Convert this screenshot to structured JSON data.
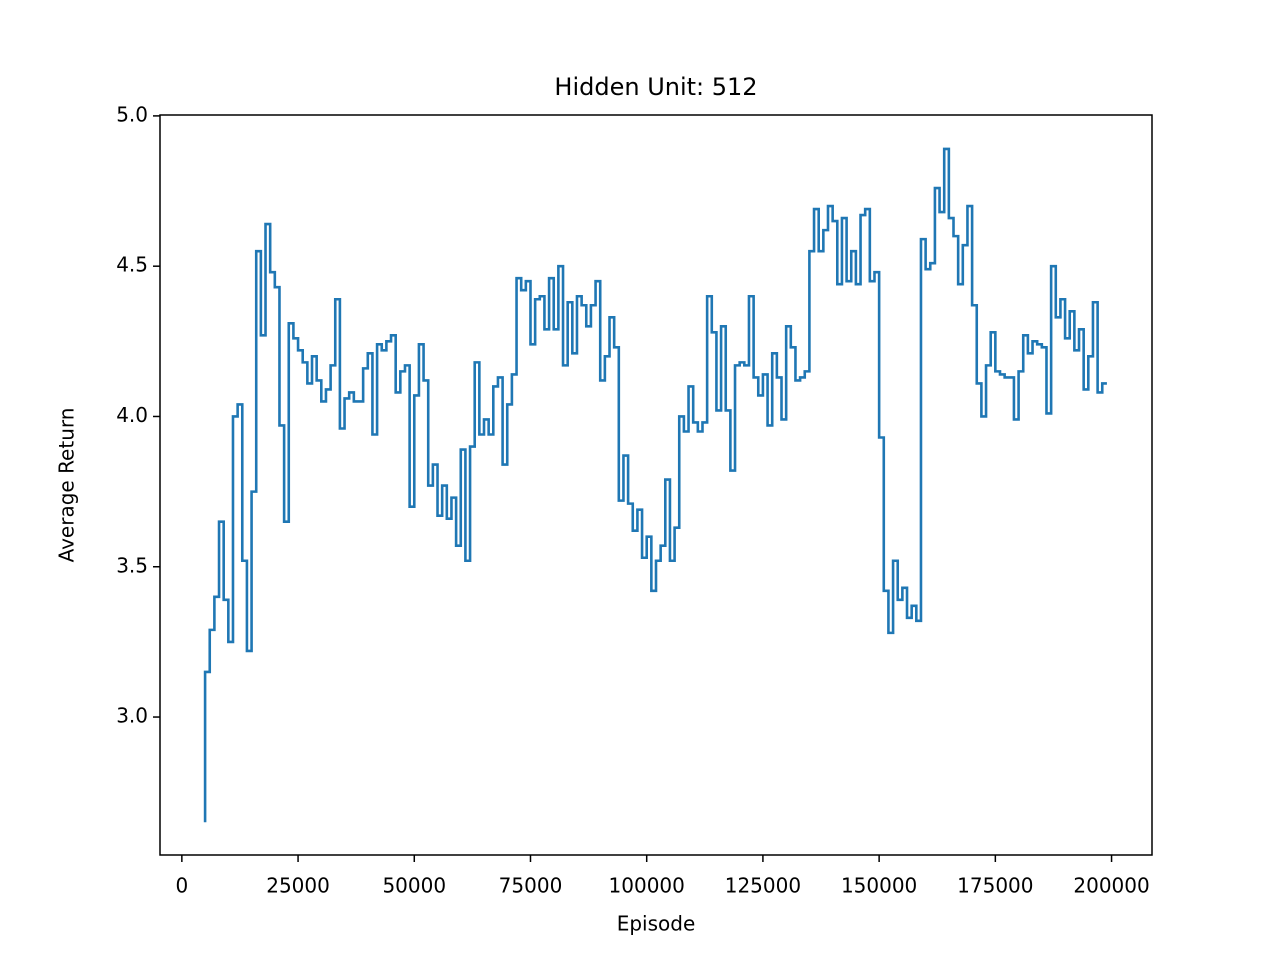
{
  "chart_data": {
    "type": "line",
    "drawstyle": "steps-pre",
    "title": "Hidden Unit: 512",
    "x_label": "Episode",
    "y_label": "Average Return",
    "x": [
      5000,
      6000,
      7000,
      8000,
      9000,
      10000,
      11000,
      12000,
      13000,
      14000,
      15000,
      16000,
      17000,
      18000,
      19000,
      20000,
      21000,
      22000,
      23000,
      24000,
      25000,
      26000,
      27000,
      28000,
      29000,
      30000,
      31000,
      32000,
      33000,
      34000,
      35000,
      36000,
      37000,
      38000,
      39000,
      40000,
      41000,
      42000,
      43000,
      44000,
      45000,
      46000,
      47000,
      48000,
      49000,
      50000,
      51000,
      52000,
      53000,
      54000,
      55000,
      56000,
      57000,
      58000,
      59000,
      60000,
      61000,
      62000,
      63000,
      64000,
      65000,
      66000,
      67000,
      68000,
      69000,
      70000,
      71000,
      72000,
      73000,
      74000,
      75000,
      76000,
      77000,
      78000,
      79000,
      80000,
      81000,
      82000,
      83000,
      84000,
      85000,
      86000,
      87000,
      88000,
      89000,
      90000,
      91000,
      92000,
      93000,
      94000,
      95000,
      96000,
      97000,
      98000,
      99000,
      100000,
      101000,
      102000,
      103000,
      104000,
      105000,
      106000,
      107000,
      108000,
      109000,
      110000,
      111000,
      112000,
      113000,
      114000,
      115000,
      116000,
      117000,
      118000,
      119000,
      120000,
      121000,
      122000,
      123000,
      124000,
      125000,
      126000,
      127000,
      128000,
      129000,
      130000,
      131000,
      132000,
      133000,
      134000,
      135000,
      136000,
      137000,
      138000,
      139000,
      140000,
      141000,
      142000,
      143000,
      144000,
      145000,
      146000,
      147000,
      148000,
      149000,
      150000,
      151000,
      152000,
      153000,
      154000,
      155000,
      156000,
      157000,
      158000,
      159000,
      160000,
      161000,
      162000,
      163000,
      164000,
      165000,
      166000,
      167000,
      168000,
      169000,
      170000,
      171000,
      172000,
      173000,
      174000,
      175000,
      176000,
      177000,
      178000,
      179000,
      180000,
      181000,
      182000,
      183000,
      184000,
      185000,
      186000,
      187000,
      188000,
      189000,
      190000,
      191000,
      192000,
      193000,
      194000,
      195000,
      196000,
      197000,
      198000,
      199000
    ],
    "series": [
      {
        "color": "#1f77b4",
        "values": [
          2.65,
          3.15,
          3.29,
          3.4,
          3.65,
          3.39,
          3.25,
          4.0,
          4.04,
          3.52,
          3.22,
          3.75,
          4.55,
          4.27,
          4.64,
          4.48,
          4.43,
          3.97,
          3.65,
          4.31,
          4.26,
          4.22,
          4.18,
          4.11,
          4.2,
          4.12,
          4.05,
          4.09,
          4.17,
          4.39,
          3.96,
          4.06,
          4.08,
          4.05,
          4.05,
          4.16,
          4.21,
          3.94,
          4.24,
          4.22,
          4.25,
          4.27,
          4.08,
          4.15,
          4.17,
          3.7,
          4.07,
          4.24,
          4.12,
          3.77,
          3.84,
          3.67,
          3.77,
          3.66,
          3.73,
          3.57,
          3.89,
          3.52,
          3.9,
          4.18,
          3.94,
          3.99,
          3.94,
          4.1,
          4.13,
          3.84,
          4.04,
          4.14,
          4.46,
          4.42,
          4.45,
          4.24,
          4.39,
          4.4,
          4.29,
          4.46,
          4.29,
          4.5,
          4.17,
          4.38,
          4.21,
          4.4,
          4.37,
          4.3,
          4.37,
          4.45,
          4.12,
          4.2,
          4.33,
          4.23,
          3.72,
          3.87,
          3.71,
          3.62,
          3.69,
          3.53,
          3.6,
          3.42,
          3.52,
          3.57,
          3.79,
          3.52,
          3.63,
          4.0,
          3.95,
          4.1,
          3.98,
          3.95,
          3.98,
          4.4,
          4.28,
          4.02,
          4.3,
          4.02,
          3.82,
          4.17,
          4.18,
          4.17,
          4.4,
          4.13,
          4.07,
          4.14,
          3.97,
          4.21,
          4.13,
          3.99,
          4.3,
          4.23,
          4.12,
          4.13,
          4.15,
          4.55,
          4.69,
          4.55,
          4.62,
          4.7,
          4.65,
          4.44,
          4.66,
          4.45,
          4.55,
          4.44,
          4.67,
          4.69,
          4.45,
          4.48,
          3.93,
          3.42,
          3.28,
          3.52,
          3.39,
          3.43,
          3.33,
          3.37,
          3.32,
          4.59,
          4.49,
          4.51,
          4.76,
          4.68,
          4.89,
          4.66,
          4.6,
          4.44,
          4.57,
          4.7,
          4.37,
          4.11,
          4.0,
          4.17,
          4.28,
          4.15,
          4.14,
          4.13,
          4.13,
          3.99,
          4.15,
          4.27,
          4.21,
          4.25,
          4.24,
          4.23,
          4.01,
          4.5,
          4.33,
          4.39,
          4.26,
          4.35,
          4.22,
          4.29,
          4.09,
          4.2,
          4.38,
          4.08,
          4.11
        ]
      }
    ],
    "xlim": [
      -4700,
      208700
    ],
    "ylim": [
      2.541,
      5.003
    ],
    "xticks": [
      0,
      25000,
      50000,
      75000,
      100000,
      125000,
      150000,
      175000,
      200000
    ],
    "yticks": [
      {
        "value": 3,
        "label": "3.0"
      },
      {
        "value": 3.5,
        "label": "3.5"
      },
      {
        "value": 4,
        "label": "4.0"
      },
      {
        "value": 4.5,
        "label": "4.5"
      },
      {
        "value": 5,
        "label": "5.0"
      }
    ]
  }
}
